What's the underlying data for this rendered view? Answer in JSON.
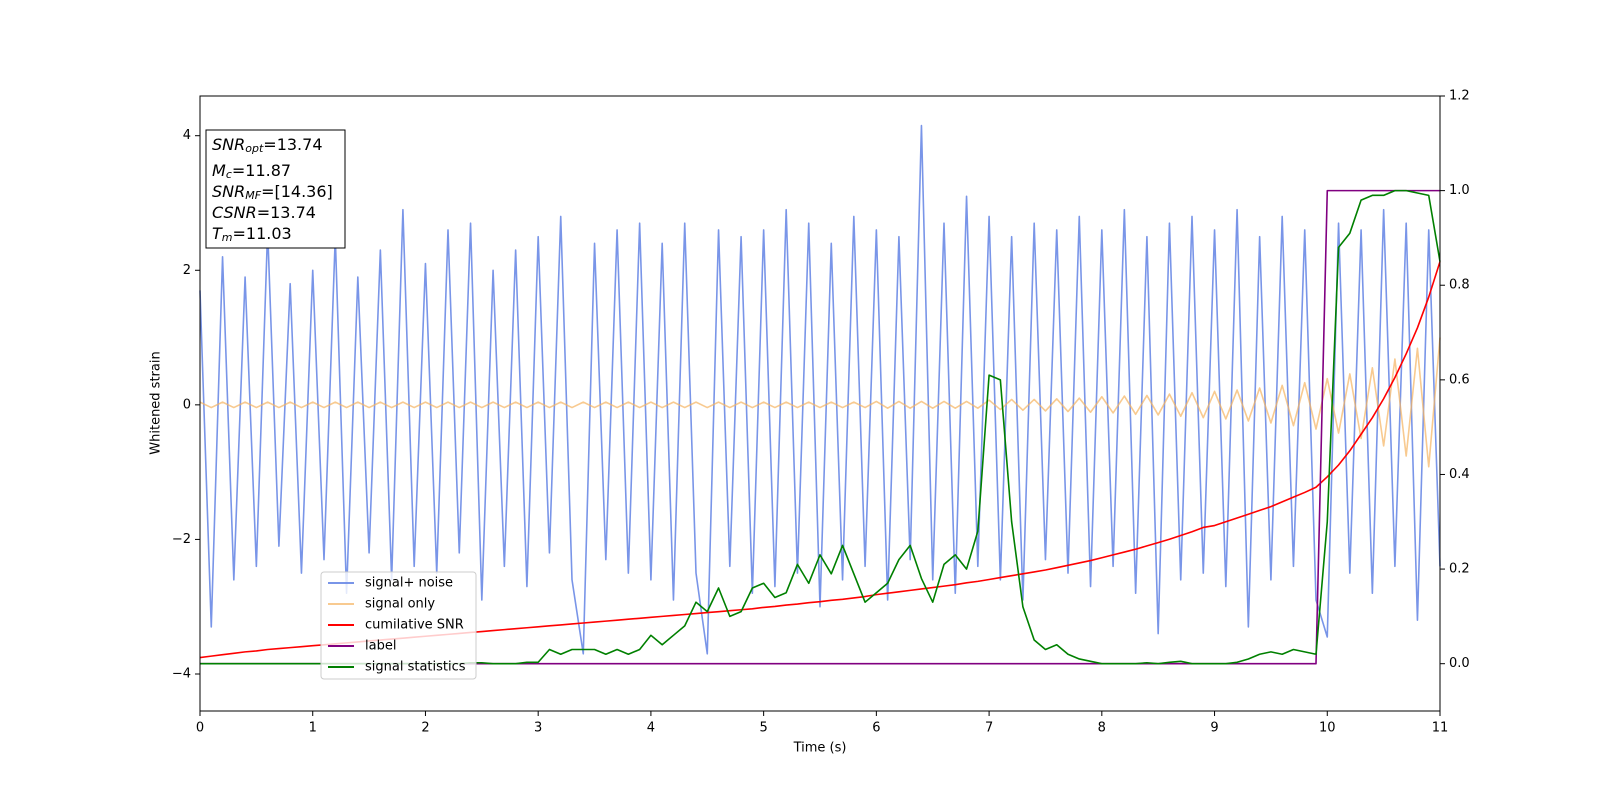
{
  "chart_data": {
    "type": "line",
    "x_label": "Time (s)",
    "y_label": "Whitened strain",
    "xlim": [
      0,
      11
    ],
    "xticks": [
      0,
      1,
      2,
      3,
      4,
      5,
      6,
      7,
      8,
      9,
      10,
      11
    ],
    "ylim": [
      -4.55,
      4.59
    ],
    "yticks": [
      {
        "value": -4,
        "label": "−4"
      },
      {
        "value": -2,
        "label": "−2"
      },
      0,
      2,
      4
    ],
    "y2lim": [
      -0.1,
      1.2
    ],
    "y2ticks": [
      {
        "value": 0,
        "label": "0.0"
      },
      0.2,
      0.4,
      0.6,
      0.8,
      {
        "value": 1,
        "label": "1.0"
      },
      1.2
    ],
    "grid": false,
    "legend": "lower left",
    "x": [
      0,
      0.1,
      0.2,
      0.3,
      0.4,
      0.5,
      0.6,
      0.7,
      0.8,
      0.9,
      1,
      1.1,
      1.2,
      1.3,
      1.4,
      1.5,
      1.6,
      1.7,
      1.8,
      1.9,
      2,
      2.1,
      2.2,
      2.3,
      2.4,
      2.5,
      2.6,
      2.7,
      2.8,
      2.9,
      3,
      3.1,
      3.2,
      3.3,
      3.4,
      3.5,
      3.6,
      3.7,
      3.8,
      3.9,
      4,
      4.1,
      4.2,
      4.3,
      4.4,
      4.5,
      4.6,
      4.7,
      4.8,
      4.9,
      5,
      5.1,
      5.2,
      5.3,
      5.4,
      5.5,
      5.6,
      5.7,
      5.8,
      5.9,
      6,
      6.1,
      6.2,
      6.3,
      6.4,
      6.5,
      6.6,
      6.7,
      6.8,
      6.9,
      7,
      7.1,
      7.2,
      7.3,
      7.4,
      7.5,
      7.6,
      7.7,
      7.8,
      7.9,
      8,
      8.1,
      8.2,
      8.3,
      8.4,
      8.5,
      8.6,
      8.7,
      8.8,
      8.9,
      9,
      9.1,
      9.2,
      9.3,
      9.4,
      9.5,
      9.6,
      9.7,
      9.8,
      9.9,
      10,
      10.1,
      10.2,
      10.3,
      10.4,
      10.5,
      10.6,
      10.7,
      10.8,
      10.9,
      11
    ],
    "series": [
      {
        "name": "signal+ noise",
        "color": "#6a8ae6",
        "opacity": 0.9,
        "values": [
          1.7,
          -3.3,
          2.2,
          -2.6,
          1.9,
          -2.4,
          2.6,
          -2.1,
          1.8,
          -2.5,
          2.0,
          -2.3,
          2.5,
          -2.8,
          1.9,
          -2.2,
          2.3,
          -2.6,
          2.9,
          -2.4,
          2.1,
          -2.5,
          2.6,
          -2.2,
          2.7,
          -2.9,
          2.0,
          -2.4,
          2.3,
          -2.7,
          2.5,
          -2.2,
          2.8,
          -2.6,
          -3.7,
          2.4,
          -2.3,
          2.6,
          -2.5,
          2.7,
          -2.6,
          2.4,
          -2.9,
          2.7,
          -2.5,
          -3.7,
          2.6,
          -2.4,
          2.5,
          -2.8,
          2.6,
          -2.7,
          2.9,
          -2.5,
          2.7,
          -3.0,
          2.4,
          -2.6,
          2.8,
          -2.4,
          2.6,
          -2.9,
          2.5,
          -2.3,
          4.15,
          -2.6,
          2.7,
          -2.8,
          3.1,
          -2.4,
          2.8,
          -2.6,
          2.5,
          -2.9,
          2.7,
          -2.3,
          2.6,
          -2.5,
          2.8,
          -2.7,
          2.6,
          -2.4,
          2.9,
          -2.8,
          2.5,
          -3.4,
          2.7,
          -2.6,
          2.8,
          -2.5,
          2.6,
          -2.7,
          2.9,
          -3.3,
          2.5,
          -2.6,
          2.8,
          -2.4,
          2.6,
          -2.9,
          -3.45,
          2.7,
          -2.5,
          2.6,
          -2.8,
          2.9,
          -2.4,
          2.7,
          -3.2,
          2.6,
          -2.4
        ]
      },
      {
        "name": "signal only",
        "color": "#f5b461",
        "opacity": 0.7,
        "values": [
          0.04,
          -0.04,
          0.04,
          -0.04,
          0.04,
          -0.04,
          0.04,
          -0.04,
          0.04,
          -0.04,
          0.04,
          -0.04,
          0.04,
          -0.04,
          0.04,
          -0.04,
          0.04,
          -0.04,
          0.04,
          -0.04,
          0.04,
          -0.04,
          0.04,
          -0.04,
          0.04,
          -0.04,
          0.04,
          -0.04,
          0.04,
          -0.04,
          0.04,
          -0.04,
          0.04,
          -0.04,
          0.04,
          -0.04,
          0.04,
          -0.04,
          0.04,
          -0.04,
          0.04,
          -0.04,
          0.04,
          -0.04,
          0.04,
          -0.04,
          0.04,
          -0.04,
          0.04,
          -0.04,
          0.04,
          -0.04,
          0.04,
          -0.04,
          0.04,
          -0.04,
          0.04,
          -0.04,
          0.04,
          -0.04,
          0.05,
          -0.05,
          0.05,
          -0.05,
          0.05,
          -0.05,
          0.05,
          -0.05,
          0.05,
          -0.05,
          0.07,
          -0.07,
          0.08,
          -0.08,
          0.08,
          -0.09,
          0.09,
          -0.1,
          0.1,
          -0.11,
          0.12,
          -0.12,
          0.13,
          -0.14,
          0.14,
          -0.15,
          0.16,
          -0.17,
          0.18,
          -0.19,
          0.2,
          -0.21,
          0.22,
          -0.24,
          0.25,
          -0.27,
          0.29,
          -0.31,
          0.33,
          -0.36,
          0.39,
          -0.42,
          0.46,
          -0.5,
          0.55,
          -0.61,
          0.68,
          -0.76,
          0.84,
          -0.92,
          1.0
        ]
      },
      {
        "name": "cumilative SNR",
        "color": "#ff0000",
        "axis": "y2",
        "values": [
          0.013,
          0.016,
          0.019,
          0.022,
          0.025,
          0.027,
          0.03,
          0.032,
          0.034,
          0.036,
          0.038,
          0.04,
          0.042,
          0.044,
          0.046,
          0.048,
          0.05,
          0.052,
          0.054,
          0.056,
          0.058,
          0.06,
          0.062,
          0.064,
          0.066,
          0.068,
          0.07,
          0.072,
          0.074,
          0.076,
          0.078,
          0.08,
          0.082,
          0.084,
          0.086,
          0.088,
          0.09,
          0.092,
          0.094,
          0.096,
          0.098,
          0.1,
          0.102,
          0.104,
          0.106,
          0.108,
          0.11,
          0.112,
          0.114,
          0.116,
          0.119,
          0.121,
          0.124,
          0.126,
          0.129,
          0.131,
          0.134,
          0.136,
          0.139,
          0.142,
          0.146,
          0.149,
          0.152,
          0.155,
          0.158,
          0.161,
          0.164,
          0.167,
          0.171,
          0.174,
          0.178,
          0.182,
          0.186,
          0.19,
          0.194,
          0.198,
          0.203,
          0.208,
          0.213,
          0.218,
          0.224,
          0.23,
          0.236,
          0.242,
          0.249,
          0.256,
          0.263,
          0.271,
          0.279,
          0.288,
          0.292,
          0.3,
          0.308,
          0.316,
          0.324,
          0.332,
          0.342,
          0.352,
          0.362,
          0.373,
          0.395,
          0.42,
          0.45,
          0.485,
          0.52,
          0.56,
          0.605,
          0.655,
          0.71,
          0.775,
          0.85
        ]
      },
      {
        "name": "label",
        "color": "#800080",
        "axis": "y2",
        "values": [
          0,
          0,
          0,
          0,
          0,
          0,
          0,
          0,
          0,
          0,
          0,
          0,
          0,
          0,
          0,
          0,
          0,
          0,
          0,
          0,
          0,
          0,
          0,
          0,
          0,
          0,
          0,
          0,
          0,
          0,
          0,
          0,
          0,
          0,
          0,
          0,
          0,
          0,
          0,
          0,
          0,
          0,
          0,
          0,
          0,
          0,
          0,
          0,
          0,
          0,
          0,
          0,
          0,
          0,
          0,
          0,
          0,
          0,
          0,
          0,
          0,
          0,
          0,
          0,
          0,
          0,
          0,
          0,
          0,
          0,
          0,
          0,
          0,
          0,
          0,
          0,
          0,
          0,
          0,
          0,
          0,
          0,
          0,
          0,
          0,
          0,
          0,
          0,
          0,
          0,
          0,
          0,
          0,
          0,
          0,
          0,
          0,
          0,
          0,
          0,
          1,
          1,
          1,
          1,
          1,
          1,
          1,
          1,
          1,
          1,
          1
        ]
      },
      {
        "name": "signal statistics",
        "color": "#008000",
        "axis": "y2",
        "values": [
          0,
          0,
          0,
          0,
          0,
          0,
          0,
          0,
          0,
          0,
          0,
          0,
          0,
          0,
          0,
          0,
          0,
          0,
          0,
          0,
          0,
          0,
          0,
          0,
          0.002,
          0.002,
          0,
          0,
          0,
          0.003,
          0.003,
          0.03,
          0.02,
          0.03,
          0.03,
          0.03,
          0.02,
          0.03,
          0.02,
          0.03,
          0.06,
          0.04,
          0.06,
          0.08,
          0.13,
          0.11,
          0.16,
          0.1,
          0.11,
          0.16,
          0.17,
          0.14,
          0.15,
          0.21,
          0.17,
          0.23,
          0.19,
          0.25,
          0.19,
          0.13,
          0.15,
          0.17,
          0.22,
          0.25,
          0.18,
          0.13,
          0.21,
          0.23,
          0.2,
          0.28,
          0.61,
          0.6,
          0.3,
          0.12,
          0.05,
          0.03,
          0.04,
          0.02,
          0.01,
          0.005,
          0,
          0,
          0,
          0,
          0.002,
          0,
          0.003,
          0.005,
          0,
          0,
          0,
          0,
          0.003,
          0.01,
          0.02,
          0.025,
          0.02,
          0.03,
          0.025,
          0.02,
          0.3,
          0.88,
          0.91,
          0.98,
          0.99,
          0.99,
          1.0,
          1.0,
          0.995,
          0.99,
          0.85
        ]
      }
    ],
    "annotations": [
      {
        "label": "SNR",
        "subscript": "opt",
        "text": "=13.74"
      },
      {
        "label": "M",
        "subscript": "c",
        "text": "=11.87"
      },
      {
        "label": "SNR",
        "subscript": "MF",
        "text": "=[14.36]"
      },
      {
        "label": "CSNR",
        "text": "=13.74"
      },
      {
        "label": "T",
        "subscript": "m",
        "text": "=11.03"
      }
    ]
  }
}
